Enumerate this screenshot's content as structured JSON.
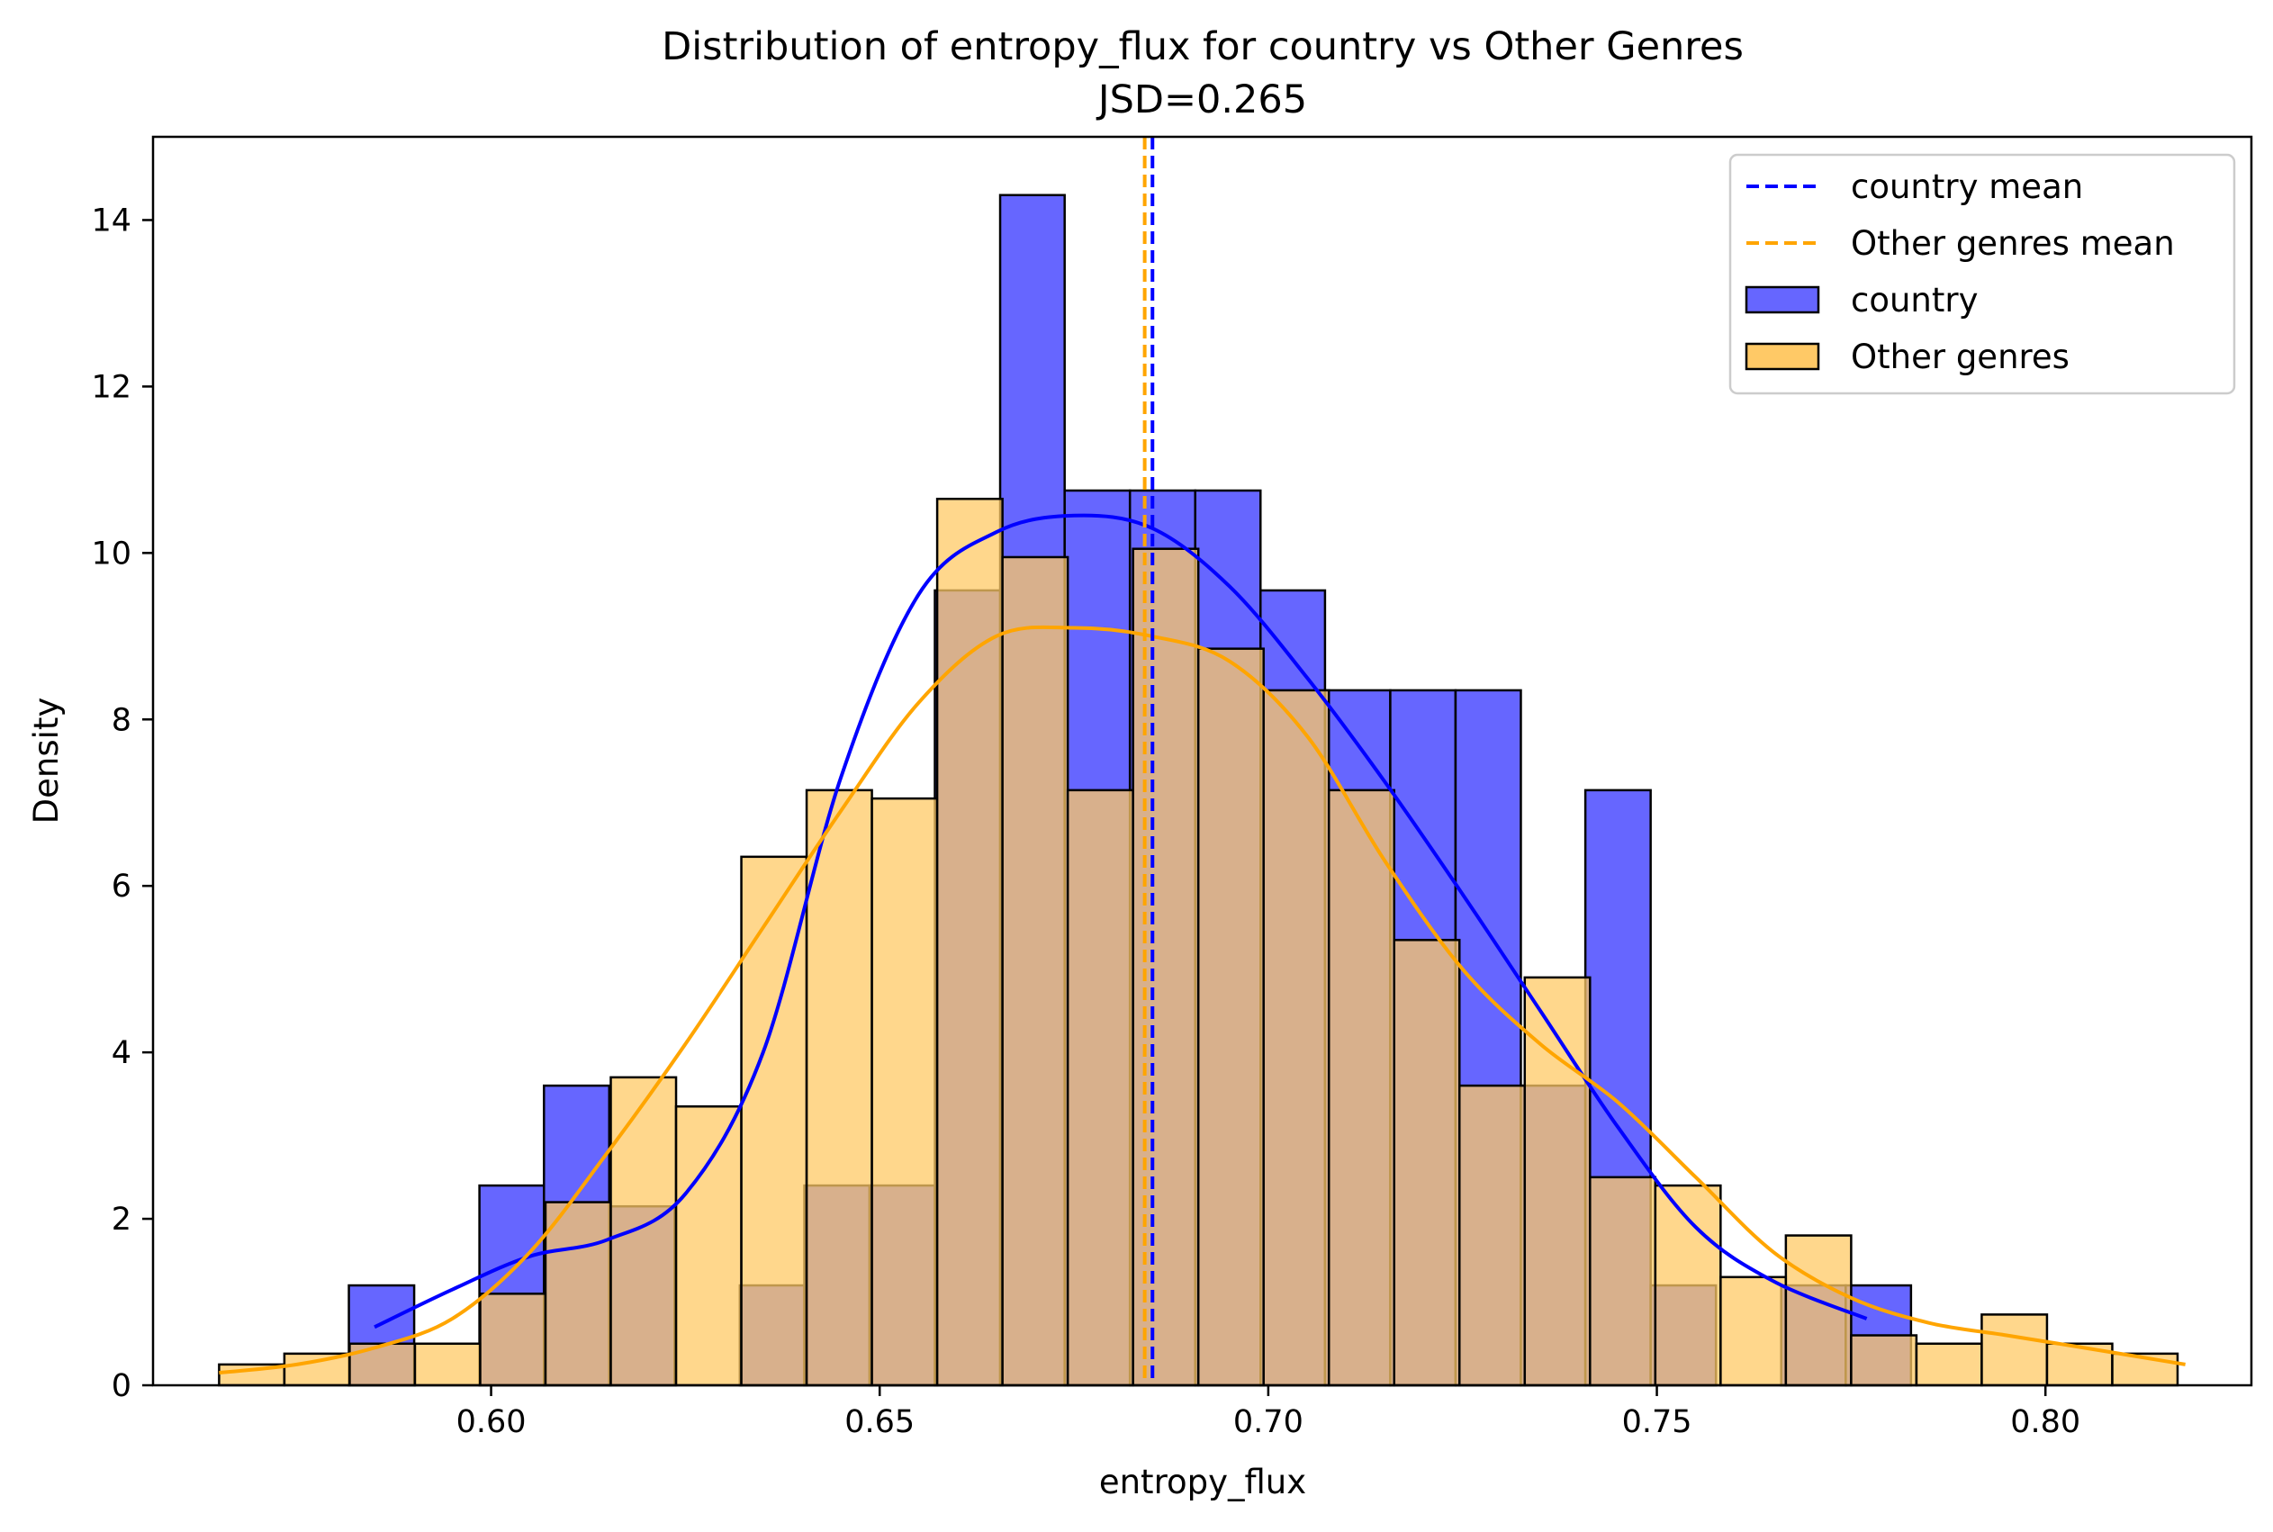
{
  "chart_data": {
    "type": "bar",
    "title": "Distribution of entropy_flux for country vs Other Genres",
    "subtitle": "JSD=0.265",
    "xlabel": "entropy_flux",
    "ylabel": "Density",
    "xlim": [
      0.5565,
      0.8265
    ],
    "ylim": [
      0,
      15
    ],
    "xticks": [
      0.6,
      0.65,
      0.7,
      0.75,
      0.8
    ],
    "xtick_labels": [
      "0.60",
      "0.65",
      "0.70",
      "0.75",
      "0.80"
    ],
    "yticks": [
      0,
      2,
      4,
      6,
      8,
      10,
      12,
      14
    ],
    "ytick_labels": [
      "0",
      "2",
      "4",
      "6",
      "8",
      "10",
      "12",
      "14"
    ],
    "grid": false,
    "legend_position": "top-right",
    "legend": [
      {
        "label": "country mean",
        "kind": "dashed-line",
        "color": "#0000ff"
      },
      {
        "label": "Other genres mean",
        "kind": "dashed-line",
        "color": "#ffa500"
      },
      {
        "label": "country",
        "kind": "patch",
        "color": "#6666ff"
      },
      {
        "label": "Other genres",
        "kind": "patch",
        "color": "#ffc966"
      }
    ],
    "series": [
      {
        "name": "country",
        "color": "#0000ff",
        "fill": "#6666ff",
        "bin_edges": [
          0.5817,
          0.5901,
          0.5985,
          0.6068,
          0.6152,
          0.6236,
          0.632,
          0.6403,
          0.6487,
          0.6571,
          0.6655,
          0.6738,
          0.6822,
          0.6906,
          0.699,
          0.7073,
          0.7157,
          0.7241,
          0.7325,
          0.7408,
          0.7492,
          0.7576,
          0.766,
          0.7743,
          0.7827
        ],
        "values": [
          1.2,
          0,
          2.4,
          3.6,
          2.15,
          0,
          1.2,
          2.4,
          2.4,
          9.55,
          14.3,
          10.75,
          10.75,
          10.75,
          9.55,
          8.35,
          8.35,
          8.35,
          3.6,
          7.15,
          1.2,
          0,
          1.2,
          1.2
        ],
        "mean": 0.6851,
        "kde_x": [
          0.585,
          0.595,
          0.605,
          0.615,
          0.625,
          0.635,
          0.645,
          0.655,
          0.665,
          0.675,
          0.685,
          0.695,
          0.705,
          0.715,
          0.725,
          0.735,
          0.745,
          0.755,
          0.765,
          0.777
        ],
        "kde_y": [
          0.7,
          1.15,
          1.55,
          1.75,
          2.3,
          4.0,
          7.3,
          9.5,
          10.25,
          10.45,
          10.3,
          9.6,
          8.5,
          7.25,
          5.9,
          4.5,
          3.1,
          1.9,
          1.25,
          0.8
        ]
      },
      {
        "name": "Other genres",
        "color": "#ffa500",
        "fill": "#ffc966",
        "bin_edges": [
          0.565,
          0.5734,
          0.5818,
          0.5902,
          0.5986,
          0.607,
          0.6154,
          0.6238,
          0.6322,
          0.6406,
          0.649,
          0.6574,
          0.6658,
          0.6742,
          0.6826,
          0.691,
          0.6994,
          0.7078,
          0.7162,
          0.7246,
          0.733,
          0.7414,
          0.7498,
          0.7582,
          0.7666,
          0.775,
          0.7834,
          0.7918,
          0.8002,
          0.8086,
          0.817
        ],
        "values": [
          0.25,
          0.38,
          0.5,
          0.5,
          1.1,
          2.2,
          3.7,
          3.35,
          6.35,
          7.15,
          7.05,
          10.65,
          9.95,
          7.15,
          10.05,
          8.85,
          8.35,
          7.15,
          5.35,
          3.6,
          4.9,
          2.5,
          2.4,
          1.3,
          1.8,
          0.6,
          0.5,
          0.85,
          0.5,
          0.38
        ],
        "mean": 0.6841,
        "kde_x": [
          0.565,
          0.575,
          0.585,
          0.595,
          0.605,
          0.615,
          0.625,
          0.635,
          0.645,
          0.655,
          0.665,
          0.675,
          0.685,
          0.695,
          0.705,
          0.715,
          0.725,
          0.735,
          0.745,
          0.755,
          0.765,
          0.775,
          0.785,
          0.795,
          0.805,
          0.818
        ],
        "kde_y": [
          0.15,
          0.25,
          0.45,
          0.8,
          1.6,
          2.8,
          4.1,
          5.5,
          6.9,
          8.2,
          9.0,
          9.1,
          9.0,
          8.7,
          7.8,
          6.3,
          5.0,
          4.1,
          3.4,
          2.5,
          1.6,
          1.05,
          0.75,
          0.6,
          0.45,
          0.25
        ]
      }
    ]
  }
}
